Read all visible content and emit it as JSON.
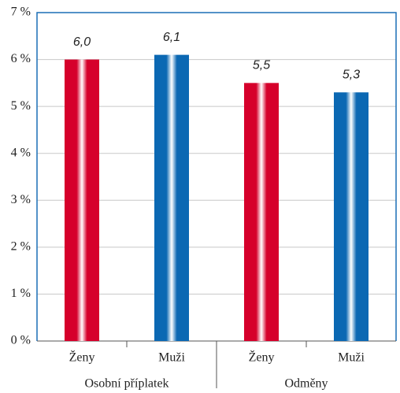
{
  "chart_data": {
    "type": "bar",
    "categories": [
      "Ženy",
      "Muži",
      "Ženy",
      "Muži"
    ],
    "groups": [
      "Osobní příplatek",
      "Odměny"
    ],
    "values": [
      6.0,
      6.1,
      5.5,
      5.3
    ],
    "value_labels": [
      "6,0",
      "6,1",
      "5,5",
      "5,3"
    ],
    "colors": [
      "#d6002b",
      "#0b68b3",
      "#d6002b",
      "#0b68b3"
    ],
    "ylim": [
      0,
      7
    ],
    "yticks": [
      {
        "value": 0,
        "label": "0 %"
      },
      {
        "value": 1,
        "label": "1 %"
      },
      {
        "value": 2,
        "label": "2 %"
      },
      {
        "value": 3,
        "label": "3 %"
      },
      {
        "value": 4,
        "label": "4 %"
      },
      {
        "value": 5,
        "label": "5 %"
      },
      {
        "value": 6,
        "label": "6 %"
      },
      {
        "value": 7,
        "label": "7 %"
      }
    ],
    "grid": true
  }
}
